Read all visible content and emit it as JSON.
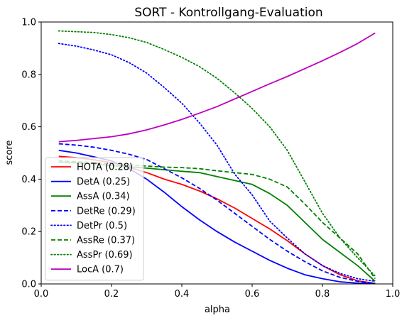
{
  "chart_data": {
    "type": "line",
    "title": "SORT - Kontrollgang-Evaluation",
    "xlabel": "alpha",
    "ylabel": "score",
    "xlim": [
      0.0,
      1.0
    ],
    "ylim": [
      0.0,
      1.0
    ],
    "xticks": [
      "0.0",
      "0.2",
      "0.4",
      "0.6",
      "0.8",
      "1.0"
    ],
    "yticks": [
      "0.0",
      "0.2",
      "0.4",
      "0.6",
      "0.8",
      "1.0"
    ],
    "grid": false,
    "legend_position": "lower-left",
    "x": [
      0.05,
      0.1,
      0.15,
      0.2,
      0.25,
      0.3,
      0.35,
      0.4,
      0.45,
      0.5,
      0.55,
      0.6,
      0.65,
      0.7,
      0.75,
      0.8,
      0.85,
      0.9,
      0.95
    ],
    "series": [
      {
        "name": "HOTA (0.28)",
        "color": "#ff0000",
        "style": "solid",
        "values": [
          0.487,
          0.482,
          0.474,
          0.463,
          0.445,
          0.425,
          0.4,
          0.38,
          0.355,
          0.325,
          0.29,
          0.25,
          0.21,
          0.165,
          0.115,
          0.07,
          0.035,
          0.012,
          0.002
        ]
      },
      {
        "name": "DetA (0.25)",
        "color": "#0000ff",
        "style": "solid",
        "values": [
          0.51,
          0.5,
          0.485,
          0.47,
          0.44,
          0.4,
          0.35,
          0.295,
          0.245,
          0.2,
          0.16,
          0.125,
          0.09,
          0.06,
          0.035,
          0.02,
          0.008,
          0.003,
          0.001
        ]
      },
      {
        "name": "AssA (0.34)",
        "color": "#008000",
        "style": "solid",
        "values": [
          0.465,
          0.462,
          0.458,
          0.452,
          0.447,
          0.442,
          0.436,
          0.43,
          0.425,
          0.41,
          0.395,
          0.38,
          0.345,
          0.3,
          0.235,
          0.17,
          0.12,
          0.07,
          0.01
        ]
      },
      {
        "name": "DetRe (0.29)",
        "color": "#0000ff",
        "style": "dashed",
        "values": [
          0.535,
          0.53,
          0.522,
          0.51,
          0.495,
          0.475,
          0.44,
          0.405,
          0.365,
          0.32,
          0.27,
          0.22,
          0.17,
          0.125,
          0.085,
          0.05,
          0.025,
          0.01,
          0.002
        ]
      },
      {
        "name": "DetPr (0.5)",
        "color": "#0000ff",
        "style": "dotted",
        "values": [
          0.918,
          0.908,
          0.893,
          0.875,
          0.845,
          0.805,
          0.75,
          0.69,
          0.615,
          0.53,
          0.42,
          0.34,
          0.24,
          0.175,
          0.115,
          0.07,
          0.04,
          0.02,
          0.01
        ]
      },
      {
        "name": "AssRe (0.37)",
        "color": "#008000",
        "style": "dashed",
        "values": [
          0.47,
          0.467,
          0.463,
          0.458,
          0.453,
          0.45,
          0.446,
          0.444,
          0.44,
          0.432,
          0.425,
          0.418,
          0.4,
          0.37,
          0.305,
          0.235,
          0.175,
          0.115,
          0.02
        ]
      },
      {
        "name": "AssPr (0.69)",
        "color": "#008000",
        "style": "dotted",
        "values": [
          0.966,
          0.963,
          0.96,
          0.952,
          0.94,
          0.922,
          0.895,
          0.865,
          0.83,
          0.785,
          0.73,
          0.67,
          0.6,
          0.51,
          0.39,
          0.27,
          0.175,
          0.1,
          0.03
        ]
      },
      {
        "name": "LocA (0.7)",
        "color": "#bf00bf",
        "style": "solid",
        "values": [
          0.543,
          0.548,
          0.555,
          0.562,
          0.573,
          0.588,
          0.607,
          0.628,
          0.652,
          0.677,
          0.706,
          0.735,
          0.764,
          0.792,
          0.822,
          0.852,
          0.884,
          0.918,
          0.958
        ]
      }
    ]
  }
}
